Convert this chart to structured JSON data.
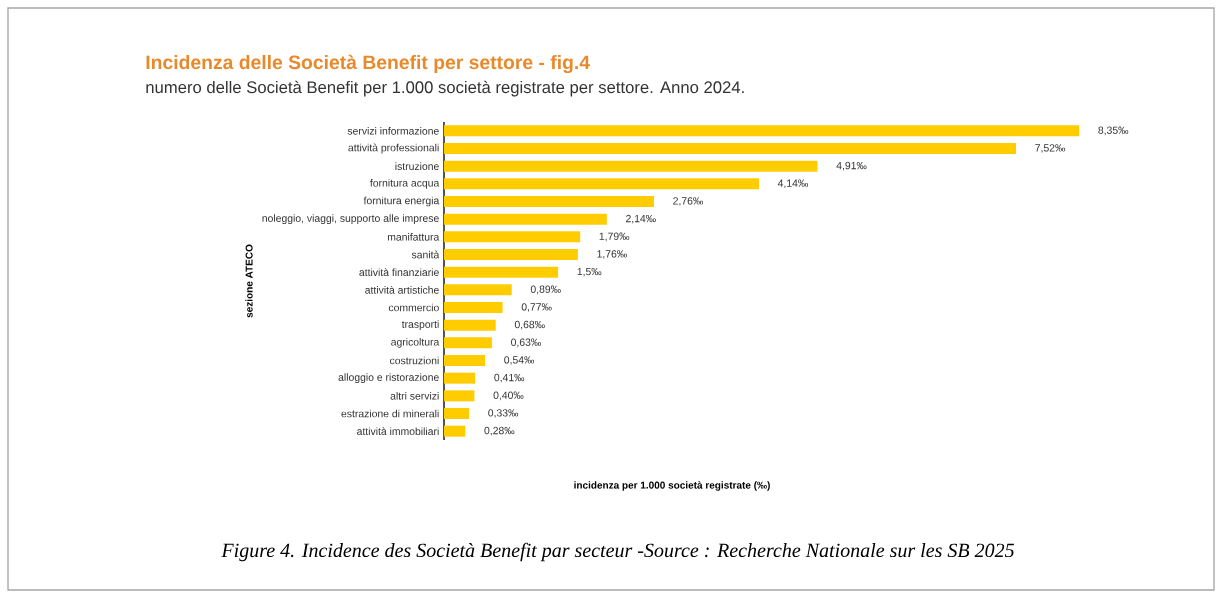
{
  "chart_data": {
    "type": "bar",
    "orientation": "horizontal",
    "title": "Incidenza delle Società Benefit per settore - fig.4",
    "subtitle": "numero delle Società Benefit per 1.000 società registrate per settore. Anno 2024.",
    "xlabel": "incidenza per 1.000 società registrate (‰)",
    "ylabel": "sezione ATECO",
    "categories": [
      "servizi informazione",
      "attività professionali",
      "istruzione",
      "fornitura acqua",
      "fornitura energia",
      "noleggio, viaggi, supporto alle imprese",
      "manifattura",
      "sanità",
      "attività finanziarie",
      "attività artistiche",
      "commercio",
      "trasporti",
      "agricoltura",
      "costruzioni",
      "alloggio e ristorazione",
      "altri servizi",
      "estrazione di minerali",
      "attività immobiliari"
    ],
    "values": [
      8.35,
      7.52,
      4.91,
      4.14,
      2.76,
      2.14,
      1.79,
      1.76,
      1.5,
      0.89,
      0.77,
      0.68,
      0.63,
      0.54,
      0.41,
      0.4,
      0.33,
      0.28
    ],
    "value_labels": [
      "8,35‰",
      "7,52‰",
      "4,91‰",
      "4,14‰",
      "2,76‰",
      "2,14‰",
      "1,79‰",
      "1,76‰",
      "1,5‰",
      "0,89‰",
      "0,77‰",
      "0,68‰",
      "0,63‰",
      "0,54‰",
      "0,41‰",
      "0,40‰",
      "0,33‰",
      "0,28‰"
    ],
    "color": "#ffcc00",
    "annotations": [
      "Figure 4. Incidence des Società Benefit par secteur -Source : Recherche Nationale sur les SB 2025"
    ]
  }
}
